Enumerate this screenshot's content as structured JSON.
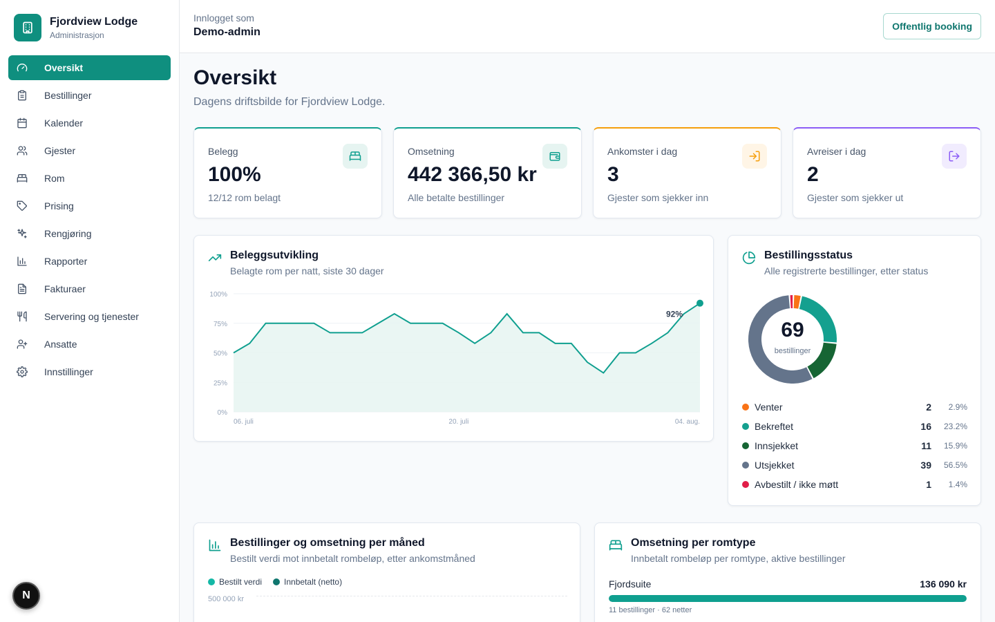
{
  "brand": {
    "name": "Fjordview Lodge",
    "subtitle": "Administrasjon"
  },
  "nav": [
    {
      "label": "Oversikt",
      "icon": "gauge-icon",
      "active": true
    },
    {
      "label": "Bestillinger",
      "icon": "clipboard-icon"
    },
    {
      "label": "Kalender",
      "icon": "calendar-icon"
    },
    {
      "label": "Gjester",
      "icon": "users-icon"
    },
    {
      "label": "Rom",
      "icon": "bed-icon"
    },
    {
      "label": "Prising",
      "icon": "tag-icon"
    },
    {
      "label": "Rengjøring",
      "icon": "sparkles-icon"
    },
    {
      "label": "Rapporter",
      "icon": "bar-chart-icon"
    },
    {
      "label": "Fakturaer",
      "icon": "file-text-icon"
    },
    {
      "label": "Servering og tjenester",
      "icon": "utensils-icon"
    },
    {
      "label": "Ansatte",
      "icon": "user-plus-icon"
    },
    {
      "label": "Innstillinger",
      "icon": "gear-icon"
    }
  ],
  "next_badge": "N",
  "header": {
    "login_label": "Innlogget som",
    "user": "Demo-admin",
    "public_booking": "Offentlig booking"
  },
  "page": {
    "title": "Oversikt",
    "subtitle": "Dagens driftsbilde for Fjordview Lodge."
  },
  "kpis": [
    {
      "label": "Belegg",
      "value": "100%",
      "sub": "12/12 rom belagt",
      "accent": "#0f9f8f",
      "icon": "bed-icon"
    },
    {
      "label": "Omsetning",
      "value": "442 366,50 kr",
      "sub": "Alle betalte bestillinger",
      "accent": "#0f9f8f",
      "icon": "wallet-icon"
    },
    {
      "label": "Ankomster i dag",
      "value": "3",
      "sub": "Gjester som sjekker inn",
      "accent": "#f59e0b",
      "icon": "log-in-icon"
    },
    {
      "label": "Avreiser i dag",
      "value": "2",
      "sub": "Gjester som sjekker ut",
      "accent": "#8b5cf6",
      "icon": "log-out-icon"
    }
  ],
  "occupancy": {
    "title": "Beleggsutvikling",
    "subtitle": "Belagte rom per natt, siste 30 dager",
    "last_label": "92%"
  },
  "status": {
    "title": "Bestillingsstatus",
    "subtitle": "Alle registrerte bestillinger, etter status",
    "total": "69",
    "total_label": "bestillinger",
    "items": [
      {
        "label": "Venter",
        "count": "2",
        "pct": "2.9%",
        "color": "#f97316"
      },
      {
        "label": "Bekreftet",
        "count": "16",
        "pct": "23.2%",
        "color": "#14a08f"
      },
      {
        "label": "Innsjekket",
        "count": "11",
        "pct": "15.9%",
        "color": "#166534"
      },
      {
        "label": "Utsjekket",
        "count": "39",
        "pct": "56.5%",
        "color": "#64748b"
      },
      {
        "label": "Avbestilt / ikke møtt",
        "count": "1",
        "pct": "1.4%",
        "color": "#e11d48"
      }
    ]
  },
  "monthly": {
    "title": "Bestillinger og omsetning per måned",
    "subtitle": "Bestilt verdi mot innbetalt rombeløp, etter ankomstmåned",
    "legend": [
      "Bestilt verdi",
      "Innbetalt (netto)"
    ],
    "top_tick": "500 000 kr"
  },
  "roomtype": {
    "title": "Omsetning per romtype",
    "subtitle": "Innbetalt rombeløp per romtype, aktive bestillinger",
    "rows": [
      {
        "name": "Fjordsuite",
        "amount": "136 090 kr",
        "meta": "11 bestillinger · 62 netter",
        "fraction": 1.0
      }
    ]
  },
  "chart_data": [
    {
      "type": "area",
      "title": "Beleggsutvikling",
      "x_ticks": [
        "06. juli",
        "20. juli",
        "04. aug."
      ],
      "y_ticks": [
        "100%",
        "75%",
        "50%",
        "25%",
        "0%"
      ],
      "ylim": [
        0,
        100
      ],
      "series": [
        {
          "values": [
            50,
            58,
            75,
            75,
            75,
            75,
            67,
            67,
            67,
            75,
            83,
            75,
            75,
            75,
            67,
            58,
            67,
            83,
            67,
            67,
            58,
            58,
            42,
            33,
            50,
            50,
            58,
            67,
            83,
            92
          ]
        }
      ],
      "annotation": "92%"
    },
    {
      "type": "pie",
      "title": "Bestillingsstatus",
      "categories": [
        "Venter",
        "Bekreftet",
        "Innsjekket",
        "Utsjekket",
        "Avbestilt / ikke møtt"
      ],
      "values": [
        2,
        16,
        11,
        39,
        1
      ]
    }
  ]
}
